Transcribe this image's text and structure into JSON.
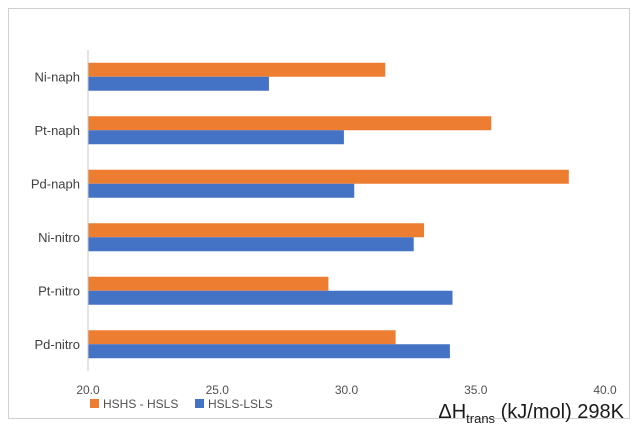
{
  "chart_data": {
    "type": "bar",
    "orientation": "horizontal",
    "categories": [
      "Ni-naph",
      "Pt-naph",
      "Pd-naph",
      "Ni-nitro",
      "Pt-nitro",
      "Pd-nitro"
    ],
    "series": [
      {
        "name": "HSHS - HSLS",
        "color": "#ED7D31",
        "values": [
          31.5,
          35.6,
          38.6,
          33.0,
          29.3,
          31.9
        ]
      },
      {
        "name": "HSLS-LSLS",
        "color": "#4472C4",
        "values": [
          27.0,
          29.9,
          30.3,
          32.6,
          34.1,
          34.0
        ]
      }
    ],
    "xlim": [
      20.0,
      40.0
    ],
    "xticks": [
      "20.0",
      "25.0",
      "30.0",
      "35.0",
      "40.0"
    ],
    "xlabel": {
      "main": "ΔH",
      "sub": "trans",
      "rest": " (kJ/mol) 298K"
    },
    "legend_position": "bottom-left",
    "grid": false
  }
}
